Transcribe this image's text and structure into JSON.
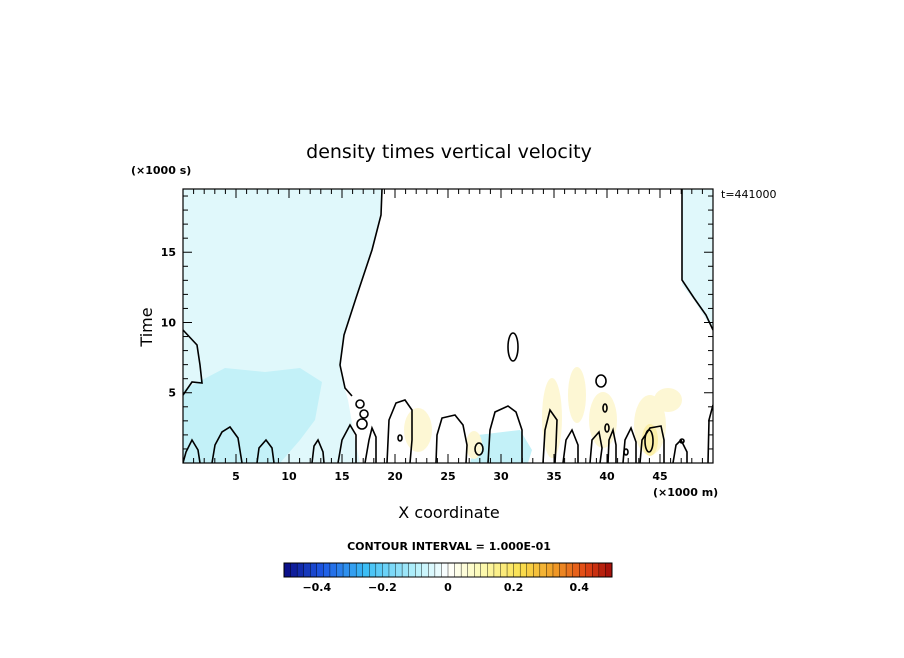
{
  "chart_data": {
    "type": "contour",
    "title": "density times vertical velocity",
    "xlabel": "X coordinate",
    "ylabel": "Time",
    "x_unit": "(×1000 m)",
    "y_unit": "(×1000 s)",
    "time_stamp": "t=441000",
    "xlim": [
      0,
      50
    ],
    "ylim": [
      0,
      19.5
    ],
    "x_ticks": [
      5,
      10,
      15,
      20,
      25,
      30,
      35,
      40,
      45
    ],
    "x_tick_labels": [
      "5",
      "10",
      "15",
      "20",
      "25",
      "30",
      "35",
      "40",
      "45"
    ],
    "y_ticks": [
      5,
      10,
      15
    ],
    "y_tick_labels": [
      "5",
      "10",
      "15"
    ],
    "contour_interval_label": "CONTOUR INTERVAL = 1.000E-01",
    "colorbar": {
      "range": [
        -0.5,
        0.5
      ],
      "ticks": [
        -0.4,
        -0.2,
        0,
        0.2,
        0.4
      ],
      "tick_labels": [
        "−0.4",
        "−0.2",
        "0",
        "0.2",
        "0.4"
      ]
    },
    "colors": {
      "neg_light": "#e0f8fb",
      "neg_mid": "#c3f1f8",
      "pos_light": "#fdf7d4",
      "pos_mid": "#fbefa9",
      "contour": "#000000"
    }
  }
}
